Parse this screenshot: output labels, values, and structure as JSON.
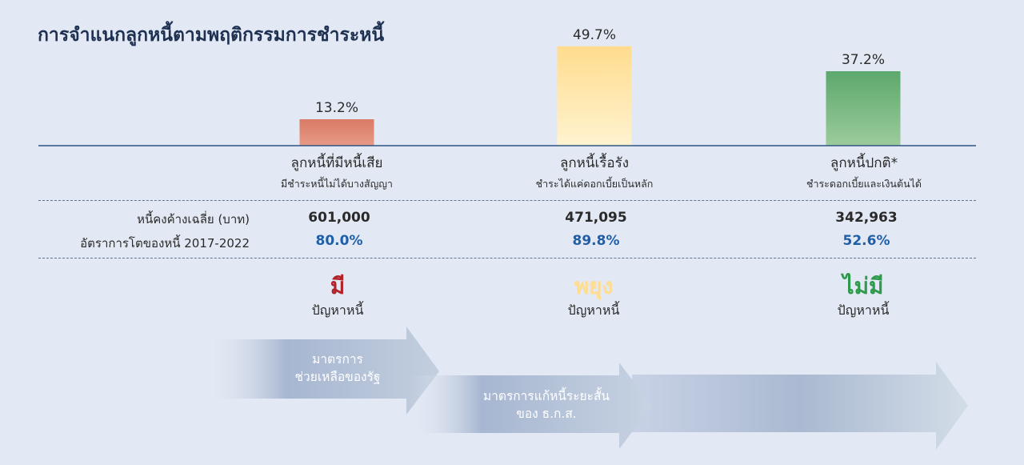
{
  "title": "การจำแนกลูกหนี้ตามพฤติกรรมการชำระหนี้",
  "chart_data": {
    "type": "bar",
    "categories": [
      "ลูกหนี้ที่มีหนี้เสีย",
      "ลูกหนี้เรื้อรัง",
      "ลูกหนี้ปกติ*"
    ],
    "descriptions": [
      "มีชำระหนี้ไม่ได้บางสัญญา",
      "ชำระได้แค่ดอกเบี้ยเป็นหลัก",
      "ชำระดอกเบี้ยและเงินต้นได้"
    ],
    "values": [
      13.2,
      49.7,
      37.2
    ],
    "value_labels": [
      "13.2%",
      "49.7%",
      "37.2%"
    ],
    "ylim": [
      0,
      50
    ],
    "bar_colors": [
      [
        "#e79a86",
        "#d97a66"
      ],
      [
        "#fff3d0",
        "#ffdc8e"
      ],
      [
        "#9ccb9c",
        "#5ca86c"
      ]
    ]
  },
  "table": {
    "row1_label": "หนี้คงค้างเฉลี่ย (บาท)",
    "row2_label": "อัตราการโตของหนี้ 2017-2022",
    "outstanding": [
      "601,000",
      "471,095",
      "342,963"
    ],
    "growth": [
      "80.0%",
      "89.8%",
      "52.6%"
    ]
  },
  "status": {
    "words": [
      "มี",
      "พยุง",
      "ไม่มี"
    ],
    "sub": "ปัญหาหนี้",
    "colors": [
      "#b2222a",
      "#ffdc8e",
      "#2e9a4c"
    ]
  },
  "arrows": {
    "gov_line1": "มาตรการ",
    "gov_line2": "ช่วยเหลือของรัฐ",
    "baac_line1": "มาตรการแก้หนี้ระยะสั้น",
    "baac_line2": "ของ ธ.ก.ส."
  }
}
